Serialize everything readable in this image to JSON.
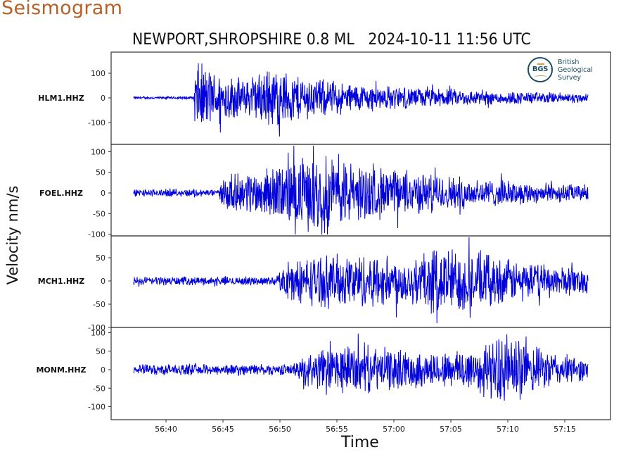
{
  "header": {
    "page_title": "Seismogram",
    "chart_title": "NEWPORT,SHROPSHIRE 0.8 ML   2024-10-11 11:56 UTC"
  },
  "logo": {
    "badge": "BGS",
    "lines": [
      "British",
      "Geological",
      "Survey"
    ]
  },
  "colors": {
    "trace": "#0000dd",
    "title_accent": "#b4612a",
    "axis": "#222222"
  },
  "chart_data": {
    "type": "line",
    "title": "NEWPORT,SHROPSHIRE 0.8 ML   2024-10-11 11:56 UTC",
    "xlabel": "Time",
    "ylabel": "Velocity nm/s",
    "x_ticks": [
      "56:40",
      "56:45",
      "56:50",
      "56:55",
      "57:00",
      "57:05",
      "57:10",
      "57:15"
    ],
    "x_range_seconds": [
      "56:37",
      "57:17"
    ],
    "grid": false,
    "legend": "none",
    "series": [
      {
        "name": "HLM1.HHZ",
        "y_ticks": [
          100,
          0,
          -100
        ],
        "ylim": [
          -175,
          190
        ],
        "noise_amp": 6,
        "onset": "56:42.5",
        "peak_amp": 165,
        "envelope": [
          [
            0,
            6
          ],
          [
            5.3,
            6
          ],
          [
            5.4,
            165
          ],
          [
            7,
            120
          ],
          [
            10,
            80
          ],
          [
            12,
            140
          ],
          [
            14,
            110
          ],
          [
            18,
            70
          ],
          [
            25,
            45
          ],
          [
            32,
            30
          ],
          [
            40,
            22
          ]
        ]
      },
      {
        "name": "FOEL.HHZ",
        "y_ticks": [
          100,
          50,
          0,
          -50,
          -100
        ],
        "ylim": [
          -105,
          115
        ],
        "noise_amp": 10,
        "onset": "56:45",
        "peak_amp": 110,
        "envelope": [
          [
            0,
            10
          ],
          [
            7.5,
            10
          ],
          [
            8,
            45
          ],
          [
            12,
            65
          ],
          [
            14,
            90
          ],
          [
            17,
            105
          ],
          [
            20,
            75
          ],
          [
            25,
            55
          ],
          [
            30,
            40
          ],
          [
            35,
            28
          ],
          [
            40,
            22
          ]
        ]
      },
      {
        "name": "MCH1.HHZ",
        "y_ticks": [
          50,
          0,
          -50,
          -100
        ],
        "ylim": [
          -100,
          100
        ],
        "noise_amp": 10,
        "onset": "56:50",
        "peak_amp": 90,
        "envelope": [
          [
            0,
            10
          ],
          [
            12.5,
            10
          ],
          [
            13.5,
            45
          ],
          [
            16,
            60
          ],
          [
            20,
            65
          ],
          [
            24,
            55
          ],
          [
            27,
            85
          ],
          [
            30,
            70
          ],
          [
            34,
            45
          ],
          [
            38,
            35
          ],
          [
            40,
            30
          ]
        ]
      },
      {
        "name": "MONM.HHZ",
        "y_ticks": [
          100,
          50,
          0,
          -50,
          -100
        ],
        "ylim": [
          -120,
          115
        ],
        "noise_amp": 16,
        "onset": "56:52",
        "peak_amp": 115,
        "envelope": [
          [
            0,
            16
          ],
          [
            14,
            16
          ],
          [
            15.5,
            55
          ],
          [
            19,
            75
          ],
          [
            23,
            60
          ],
          [
            27,
            50
          ],
          [
            31,
            80
          ],
          [
            33,
            110
          ],
          [
            35,
            70
          ],
          [
            38,
            45
          ],
          [
            40,
            30
          ]
        ]
      }
    ]
  }
}
